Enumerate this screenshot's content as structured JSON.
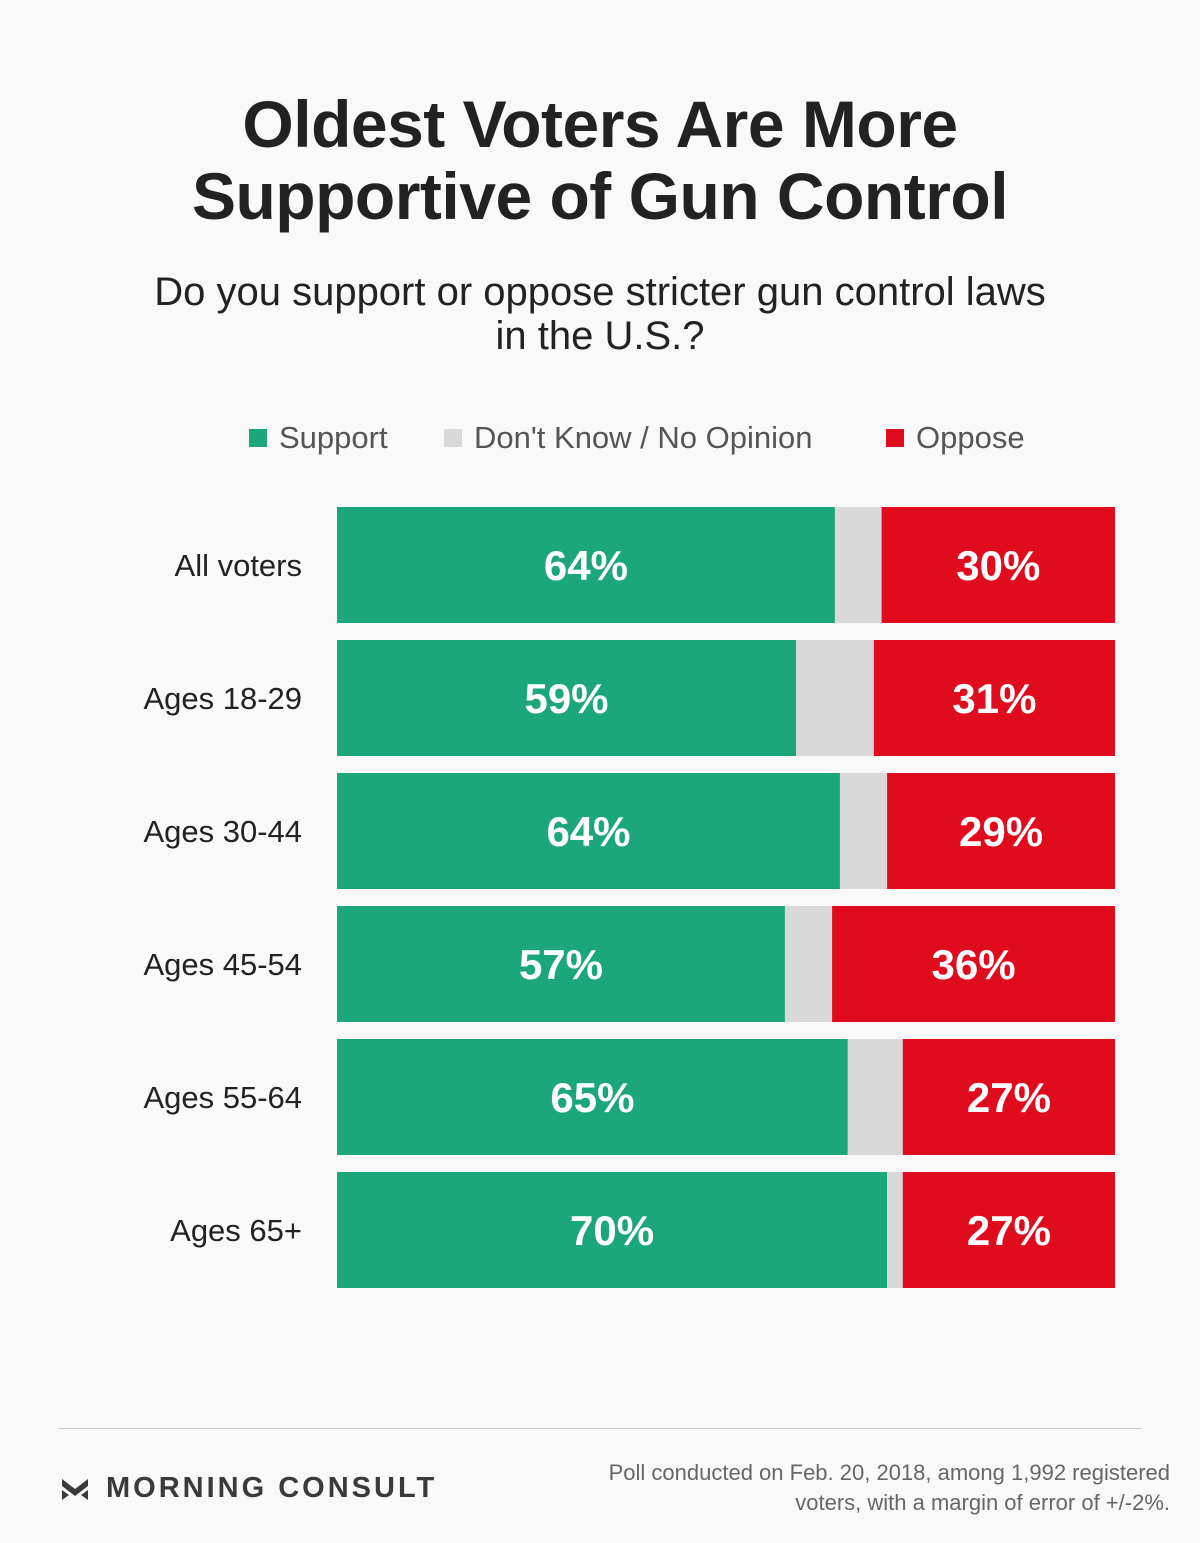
{
  "header": {
    "title_line1": "Oldest Voters Are More",
    "title_line2": "Supportive of Gun Control",
    "subtitle_line1": "Do you support or oppose stricter gun control laws",
    "subtitle_line2": "in the U.S.?"
  },
  "colors": {
    "support": "#1ca67c",
    "dont_know": "#d9d9d9",
    "oppose": "#e00b1d"
  },
  "chart_data": {
    "type": "bar",
    "orientation": "horizontal",
    "stacked": true,
    "normalized_to_100": true,
    "title": "Oldest Voters Are More Supportive of Gun Control",
    "subtitle": "Do you support or oppose stricter gun control laws in the U.S.?",
    "legend_position": "top",
    "categories": [
      "All voters",
      "Ages 18-29",
      "Ages 30-44",
      "Ages 45-54",
      "Ages 55-64",
      "Ages 65+"
    ],
    "series": [
      {
        "name": "Support",
        "color": "#1ca67c",
        "values": [
          64,
          59,
          64,
          57,
          65,
          70
        ],
        "labels": [
          "64%",
          "59%",
          "64%",
          "57%",
          "65%",
          "70%"
        ]
      },
      {
        "name": "Don't Know / No Opinion",
        "color": "#d9d9d9",
        "values": [
          6,
          10,
          6,
          6,
          7,
          2
        ],
        "labels": [
          "",
          "",
          "",
          "",
          "",
          ""
        ]
      },
      {
        "name": "Oppose",
        "color": "#e00b1d",
        "values": [
          30,
          31,
          29,
          36,
          27,
          27
        ],
        "labels": [
          "30%",
          "31%",
          "29%",
          "36%",
          "27%",
          "27%"
        ]
      }
    ],
    "xlim": [
      0,
      100
    ],
    "grid": false
  },
  "footer": {
    "brand": "MORNING CONSULT",
    "brand_icon": "morning-consult-logo-icon",
    "note_line1": "Poll conducted on Feb. 20, 2018, among 1,992 registered",
    "note_line2": "voters, with a margin of error of +/-2%."
  }
}
